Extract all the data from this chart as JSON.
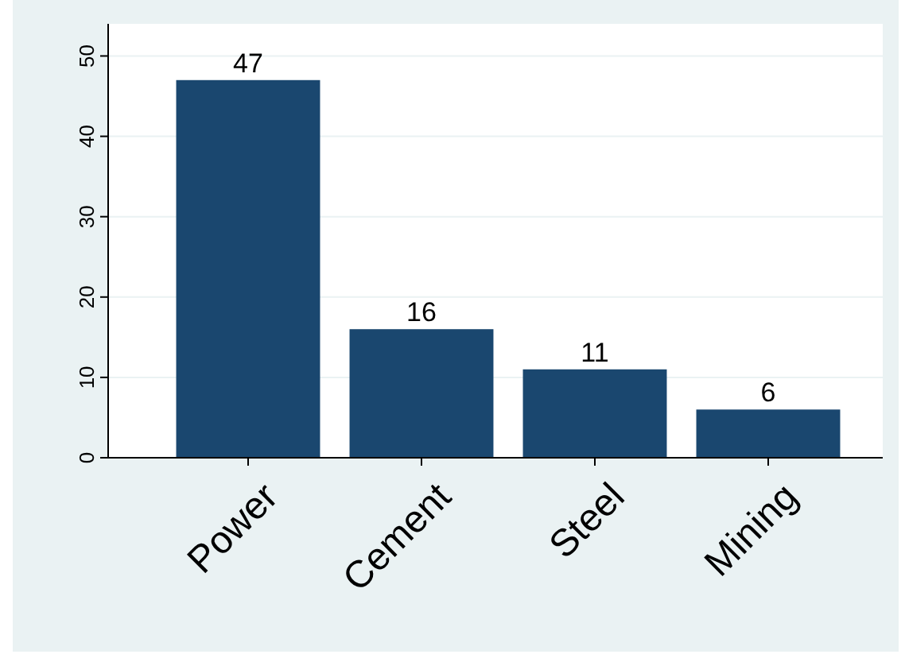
{
  "chart_data": {
    "type": "bar",
    "categories": [
      "Power",
      "Cement",
      "Steel",
      "Mining"
    ],
    "values": [
      47,
      16,
      11,
      6
    ],
    "color": "#1a476f",
    "ylim": [
      0,
      54
    ],
    "yticks": [
      0,
      10,
      20,
      30,
      40,
      50
    ],
    "grid": "y",
    "data_labels": true
  }
}
